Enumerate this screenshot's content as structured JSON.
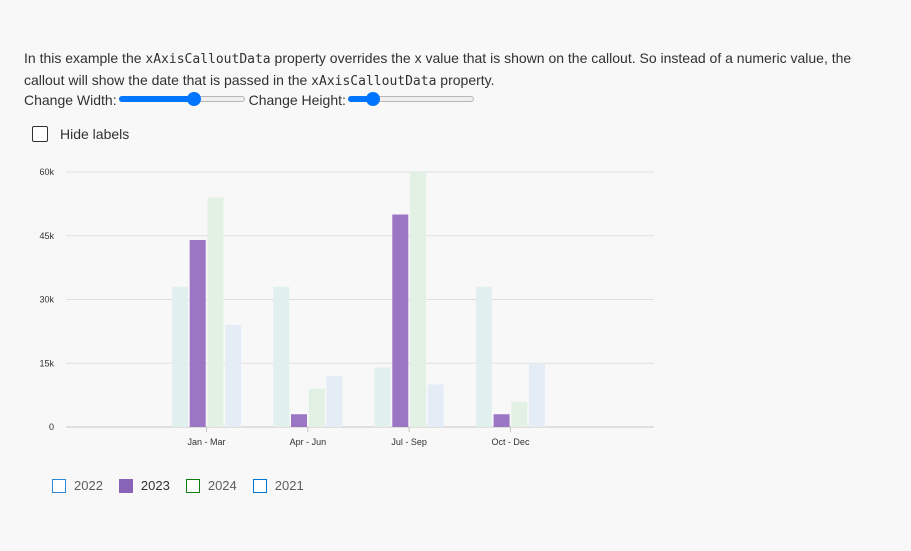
{
  "description": {
    "part1": "In this example the ",
    "code1": "xAxisCalloutData",
    "part2": " property overrides the x value that is shown on the callout. So instead of a numeric value, the callout will show the date that is passed in the ",
    "code2": "xAxisCalloutData",
    "part3": " property."
  },
  "controls": {
    "width_label": "Change Width:",
    "width_value": 0.6,
    "height_label": "Change Height:",
    "height_value": 0.2
  },
  "hide_labels": {
    "label": "Hide labels",
    "checked": false
  },
  "colors": {
    "series_2022": "#e1efee",
    "series_2023": "#9b76c4",
    "series_2024": "#e3f1e4",
    "series_2021": "#e4edf6",
    "legend_2022_border": "#2b88d8",
    "legend_2023_fill": "#8764b8",
    "legend_2024_border": "#107c10",
    "legend_2021_border": "#0078d4",
    "grid": "#e1dfdd",
    "axis": "#c8c6c4"
  },
  "chart_data": {
    "type": "bar",
    "categories": [
      "Jan - Mar",
      "Apr - Jun",
      "Jul - Sep",
      "Oct - Dec"
    ],
    "series": [
      {
        "name": "2022",
        "values": [
          33000,
          33000,
          14000,
          33000
        ]
      },
      {
        "name": "2023",
        "values": [
          44000,
          3000,
          50000,
          3000
        ]
      },
      {
        "name": "2024",
        "values": [
          54000,
          9000,
          60000,
          6000
        ]
      },
      {
        "name": "2021",
        "values": [
          24000,
          12000,
          10000,
          15000
        ]
      }
    ],
    "yticks": [
      "0",
      "15k",
      "30k",
      "45k",
      "60k"
    ],
    "ylim": [
      0,
      60000
    ],
    "grid": true,
    "legend_position": "bottom-left",
    "highlighted_series": "2023"
  },
  "legend": [
    {
      "label": "2022"
    },
    {
      "label": "2023"
    },
    {
      "label": "2024"
    },
    {
      "label": "2021"
    }
  ]
}
